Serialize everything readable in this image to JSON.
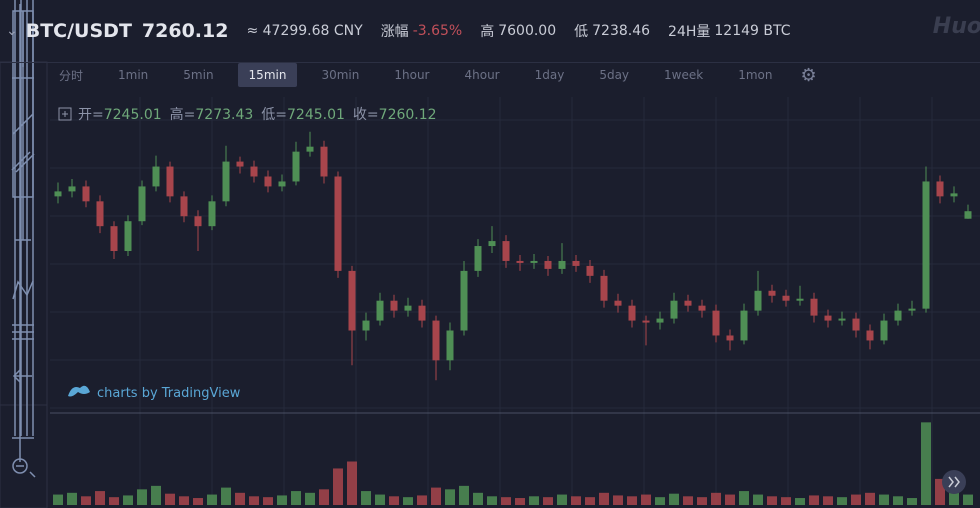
{
  "header": {
    "pair": "BTC/USDT",
    "price": "7260.12",
    "cny": "≈ 47299.68 CNY",
    "change_label": "涨幅",
    "change": "-3.65%",
    "high_label": "高",
    "high": "7600.00",
    "low_label": "低",
    "low": "7238.46",
    "vol_label": "24H量",
    "vol": "12149 BTC",
    "logo": "Huo"
  },
  "intervals": [
    "分时",
    "1min",
    "5min",
    "15min",
    "30min",
    "1hour",
    "4hour",
    "1day",
    "5day",
    "1week",
    "1mon"
  ],
  "active_interval": 3,
  "legend": [
    {
      "label": "开=",
      "value": "7245.01"
    },
    {
      "label": "高=",
      "value": "7273.43"
    },
    {
      "label": "低=",
      "value": "7245.01"
    },
    {
      "label": "收=",
      "value": "7260.12"
    }
  ],
  "watermark": "charts by TradingView",
  "chart_data": {
    "type": "candlestick",
    "open": [
      7290,
      7300,
      7310,
      7280,
      7230,
      7180,
      7240,
      7310,
      7350,
      7290,
      7250,
      7230,
      7280,
      7360,
      7350,
      7330,
      7310,
      7320,
      7380,
      7390,
      7330,
      7140,
      7020,
      7040,
      7080,
      7060,
      7070,
      7040,
      6960,
      7020,
      7140,
      7190,
      7200,
      7160,
      7156,
      7160,
      7144,
      7160,
      7150,
      7130,
      7080,
      7070,
      7040,
      7036,
      7044,
      7080,
      7070,
      7060,
      7010,
      7000,
      7060,
      7100,
      7090,
      7080,
      7084,
      7050,
      7040,
      7044,
      7020,
      7000,
      7040,
      7060,
      7064,
      7320,
      7290,
      7245.01
    ],
    "high": [
      7318,
      7325,
      7322,
      7292,
      7240,
      7252,
      7322,
      7372,
      7360,
      7300,
      7262,
      7292,
      7392,
      7370,
      7362,
      7342,
      7334,
      7400,
      7420,
      7402,
      7340,
      7150,
      7056,
      7096,
      7092,
      7086,
      7082,
      7050,
      7036,
      7160,
      7204,
      7230,
      7212,
      7172,
      7174,
      7170,
      7196,
      7172,
      7162,
      7142,
      7094,
      7082,
      7050,
      7058,
      7096,
      7092,
      7082,
      7072,
      7022,
      7074,
      7140,
      7112,
      7102,
      7110,
      7096,
      7062,
      7058,
      7056,
      7032,
      7054,
      7074,
      7080,
      7350,
      7332,
      7310,
      7273.43
    ],
    "low": [
      7276,
      7288,
      7268,
      7216,
      7164,
      7170,
      7232,
      7300,
      7278,
      7238,
      7180,
      7222,
      7270,
      7336,
      7318,
      7298,
      7300,
      7312,
      7370,
      7316,
      7126,
      6950,
      7000,
      7030,
      7046,
      7048,
      7026,
      6920,
      6940,
      7010,
      7128,
      7176,
      7146,
      7140,
      7144,
      7130,
      7134,
      7138,
      7116,
      7066,
      7056,
      7026,
      6990,
      7022,
      7034,
      7058,
      7046,
      6996,
      6980,
      6992,
      7050,
      7076,
      7068,
      7070,
      7036,
      7026,
      7030,
      7006,
      6982,
      6992,
      7030,
      7050,
      7056,
      7276,
      7278,
      7245.01
    ],
    "close": [
      7300,
      7310,
      7280,
      7230,
      7180,
      7240,
      7310,
      7350,
      7290,
      7250,
      7230,
      7280,
      7360,
      7350,
      7330,
      7310,
      7320,
      7380,
      7390,
      7330,
      7140,
      7020,
      7040,
      7080,
      7060,
      7070,
      7040,
      6960,
      7020,
      7140,
      7190,
      7200,
      7160,
      7156,
      7160,
      7144,
      7160,
      7150,
      7130,
      7080,
      7070,
      7040,
      7036,
      7044,
      7080,
      7070,
      7060,
      7010,
      7000,
      7060,
      7100,
      7090,
      7080,
      7084,
      7050,
      7040,
      7044,
      7020,
      7000,
      7040,
      7060,
      7064,
      7320,
      7290,
      7296,
      7260.12
    ],
    "volume": [
      12,
      14,
      10,
      16,
      9,
      11,
      18,
      22,
      13,
      10,
      8,
      12,
      20,
      14,
      10,
      9,
      11,
      16,
      14,
      18,
      42,
      50,
      16,
      12,
      10,
      9,
      11,
      20,
      18,
      22,
      14,
      10,
      9,
      8,
      10,
      9,
      12,
      10,
      9,
      14,
      11,
      10,
      12,
      9,
      13,
      10,
      9,
      14,
      12,
      16,
      12,
      10,
      9,
      8,
      11,
      10,
      9,
      12,
      14,
      12,
      10,
      8,
      95,
      30,
      14,
      12
    ],
    "ylim": [
      6860,
      7490
    ],
    "volume_lim": [
      0,
      100
    ],
    "up_color": "#4f8f55",
    "down_color": "#a8454c"
  }
}
